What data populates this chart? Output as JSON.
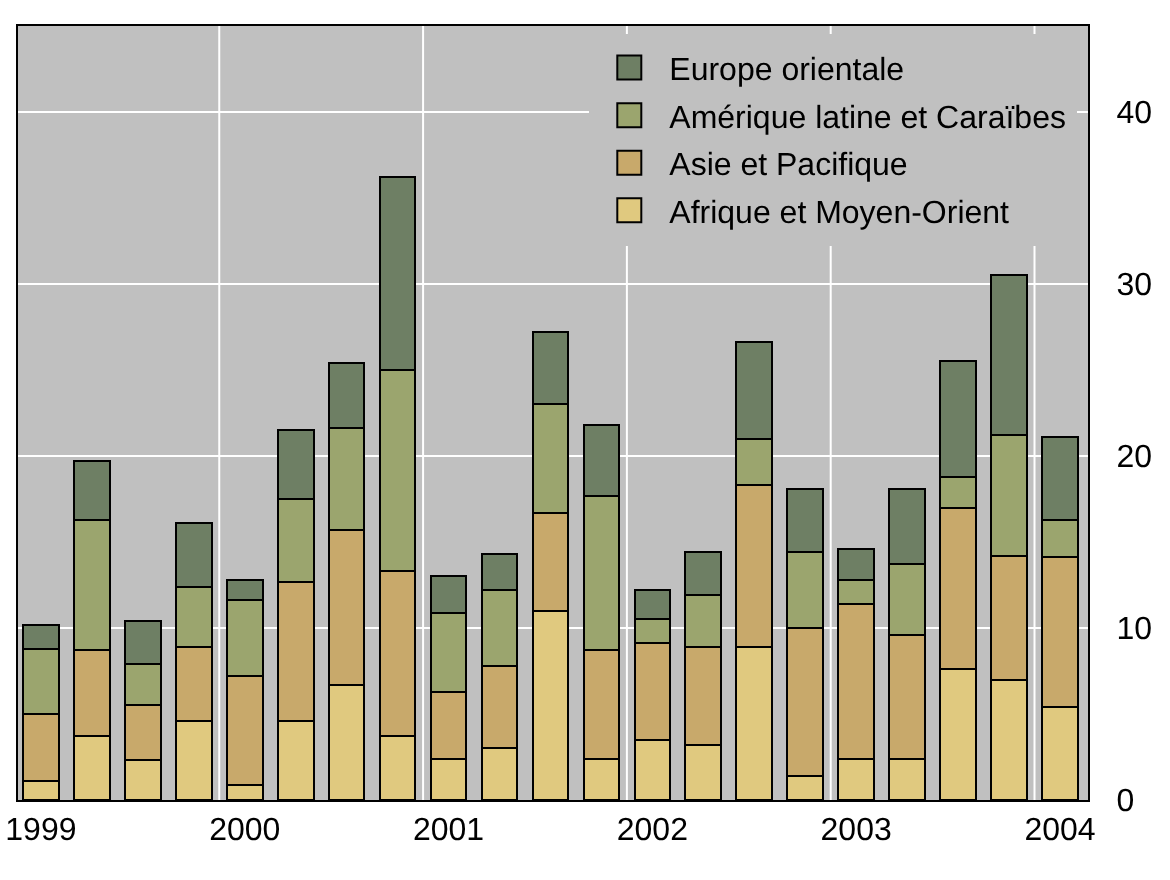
{
  "chart_data": {
    "type": "bar",
    "stacked": true,
    "categories": [
      "1999",
      null,
      null,
      null,
      "2000",
      null,
      null,
      null,
      "2001",
      null,
      null,
      null,
      "2002",
      null,
      null,
      null,
      "2003",
      null,
      null,
      null,
      "2004"
    ],
    "series": [
      {
        "name": "Afrique et Moyen-Orient",
        "color": "#e0c97f",
        "values": [
          1.1,
          3.7,
          2.3,
          4.6,
          0.9,
          4.6,
          6.7,
          3.7,
          2.4,
          3.0,
          11.0,
          2.4,
          3.5,
          3.2,
          8.9,
          1.4,
          2.4,
          2.4,
          7.6,
          7.0,
          5.4
        ]
      },
      {
        "name": "Asie et Pacifique",
        "color": "#c8a96b",
        "values": [
          3.9,
          5.0,
          3.2,
          4.3,
          6.3,
          8.1,
          9.0,
          9.6,
          3.9,
          4.8,
          5.7,
          6.3,
          5.6,
          5.7,
          9.4,
          8.6,
          9.0,
          7.2,
          9.4,
          7.2,
          8.7
        ]
      },
      {
        "name": "Amérique latine et Caraïbes",
        "color": "#9ba56e",
        "values": [
          3.8,
          7.6,
          2.4,
          3.5,
          4.4,
          4.8,
          5.9,
          11.7,
          4.6,
          4.4,
          6.3,
          9.0,
          1.4,
          3.0,
          2.7,
          4.4,
          1.4,
          4.1,
          1.8,
          7.0,
          2.2
        ]
      },
      {
        "name": "Europe orientale",
        "color": "#6e7f64",
        "values": [
          1.4,
          3.4,
          2.5,
          3.7,
          1.2,
          4.0,
          3.8,
          11.2,
          2.1,
          2.1,
          4.2,
          4.1,
          1.7,
          2.5,
          5.6,
          3.7,
          1.8,
          4.4,
          6.7,
          9.3,
          4.8
        ]
      }
    ],
    "ylim": [
      0,
      45
    ],
    "yticks": [
      0,
      10,
      20,
      30,
      40
    ],
    "grid": true,
    "legend": "top right"
  }
}
